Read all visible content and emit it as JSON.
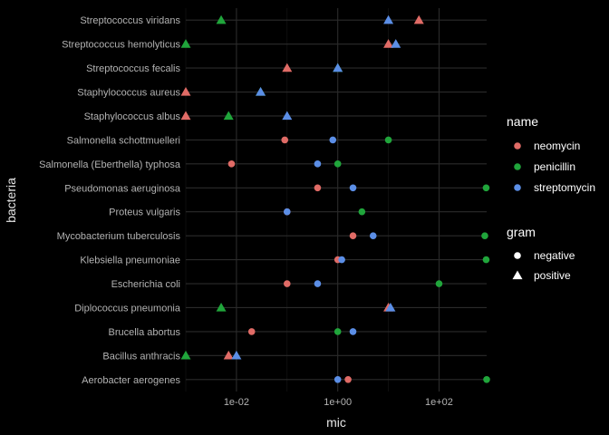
{
  "chart_data": {
    "type": "scatter",
    "xlabel": "mic",
    "ylabel": "bacteria",
    "x_scale": "log10",
    "xlim": [
      0.001,
      870
    ],
    "x_ticks": [
      {
        "value": 0.01,
        "label": "1e-02"
      },
      {
        "value": 1,
        "label": "1e+00"
      },
      {
        "value": 100,
        "label": "1e+02"
      }
    ],
    "categories": [
      "Aerobacter aerogenes",
      "Bacillus anthracis",
      "Brucella abortus",
      "Diplococcus pneumonia",
      "Escherichia coli",
      "Klebsiella pneumoniae",
      "Mycobacterium tuberculosis",
      "Proteus vulgaris",
      "Pseudomonas aeruginosa",
      "Salmonella (Eberthella) typhosa",
      "Salmonella schottmuelleri",
      "Staphylococcus albus",
      "Staphylococcus aureus",
      "Streptococcus fecalis",
      "Streptococcus hemolyticus",
      "Streptococcus viridans"
    ],
    "gram": {
      "Aerobacter aerogenes": "negative",
      "Bacillus anthracis": "positive",
      "Brucella abortus": "negative",
      "Diplococcus pneumonia": "positive",
      "Escherichia coli": "negative",
      "Klebsiella pneumoniae": "negative",
      "Mycobacterium tuberculosis": "negative",
      "Proteus vulgaris": "negative",
      "Pseudomonas aeruginosa": "negative",
      "Salmonella (Eberthella) typhosa": "negative",
      "Salmonella schottmuelleri": "negative",
      "Staphylococcus albus": "positive",
      "Staphylococcus aureus": "positive",
      "Streptococcus fecalis": "positive",
      "Streptococcus hemolyticus": "positive",
      "Streptococcus viridans": "positive"
    },
    "series": [
      {
        "name": "neomycin",
        "color": "#e06b66",
        "values": [
          1.6,
          0.007,
          0.02,
          10,
          0.1,
          1,
          2,
          0.1,
          0.4,
          0.008,
          0.09,
          0.001,
          0.001,
          0.1,
          10,
          40
        ]
      },
      {
        "name": "penicillin",
        "color": "#20a53b",
        "values": [
          870,
          0.001,
          1,
          0.005,
          100,
          850,
          800,
          3,
          850,
          1,
          10,
          0.007,
          0.03,
          1,
          0.001,
          0.005
        ]
      },
      {
        "name": "streptomycin",
        "color": "#5b8ee6",
        "values": [
          1,
          0.01,
          2,
          11,
          0.4,
          1.2,
          5,
          0.1,
          2,
          0.4,
          0.8,
          0.1,
          0.03,
          1,
          14,
          10
        ]
      }
    ],
    "legend": {
      "placement": "right",
      "color_title": "name",
      "shape_title": "gram",
      "shape_entries": [
        {
          "label": "negative",
          "shape": "circle"
        },
        {
          "label": "positive",
          "shape": "triangle"
        }
      ]
    },
    "grid": true
  }
}
